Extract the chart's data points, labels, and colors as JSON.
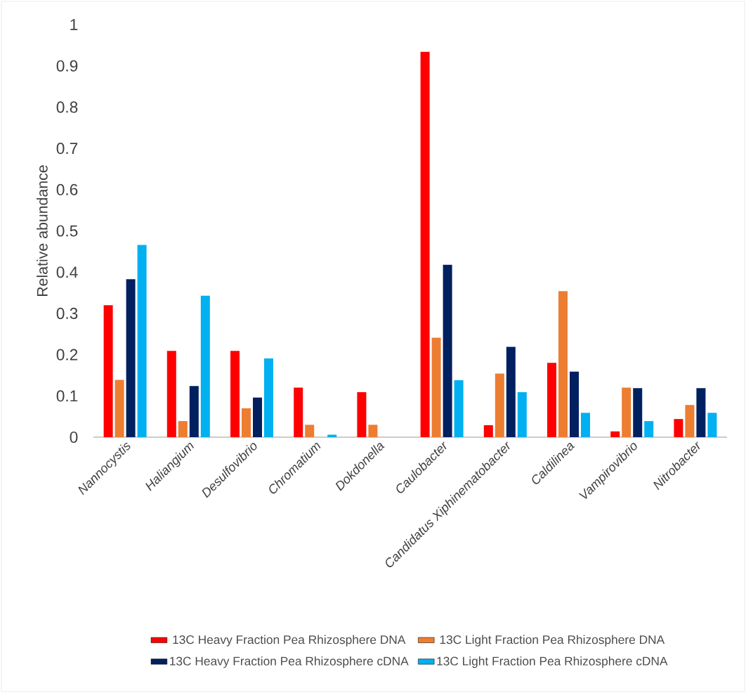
{
  "chart_data": {
    "type": "bar",
    "ylabel": "Relative abundance",
    "categories": [
      "Nannocystis",
      "Haliangium",
      "Desulfovibrio",
      "Chromatium",
      "Dokdonella",
      "Caulobacter",
      "Candidatus Xiphinematobacter",
      "Caldilinea",
      "Vampirovibrio",
      "Nitrobacter"
    ],
    "series": [
      {
        "name": "13C Heavy Fraction Pea Rhizosphere DNA",
        "color": "#ff0000",
        "values": [
          0.32,
          0.209,
          0.209,
          0.12,
          0.109,
          0.934,
          0.029,
          0.18,
          0.014,
          0.044
        ]
      },
      {
        "name": "13C Light Fraction Pea Rhizosphere DNA",
        "color": "#ed7d31",
        "values": [
          0.139,
          0.039,
          0.07,
          0.03,
          0.03,
          0.241,
          0.154,
          0.354,
          0.12,
          0.078
        ]
      },
      {
        "name": "13C Heavy Fraction Pea Rhizosphere cDNA",
        "color": "#002060",
        "values": [
          0.383,
          0.124,
          0.096,
          0,
          0,
          0.418,
          0.219,
          0.159,
          0.119,
          0.119
        ]
      },
      {
        "name": "13C Light Fraction Pea Rhizosphere cDNA",
        "color": "#00b0f0",
        "values": [
          0.466,
          0.343,
          0.191,
          0.006,
          0,
          0.138,
          0.109,
          0.059,
          0.039,
          0.059
        ]
      }
    ],
    "ylim": [
      0,
      1
    ],
    "yticks": [
      0,
      0.1,
      0.2,
      0.3,
      0.4,
      0.5,
      0.6,
      0.7,
      0.8,
      0.9,
      1
    ],
    "legend": "bottom"
  }
}
